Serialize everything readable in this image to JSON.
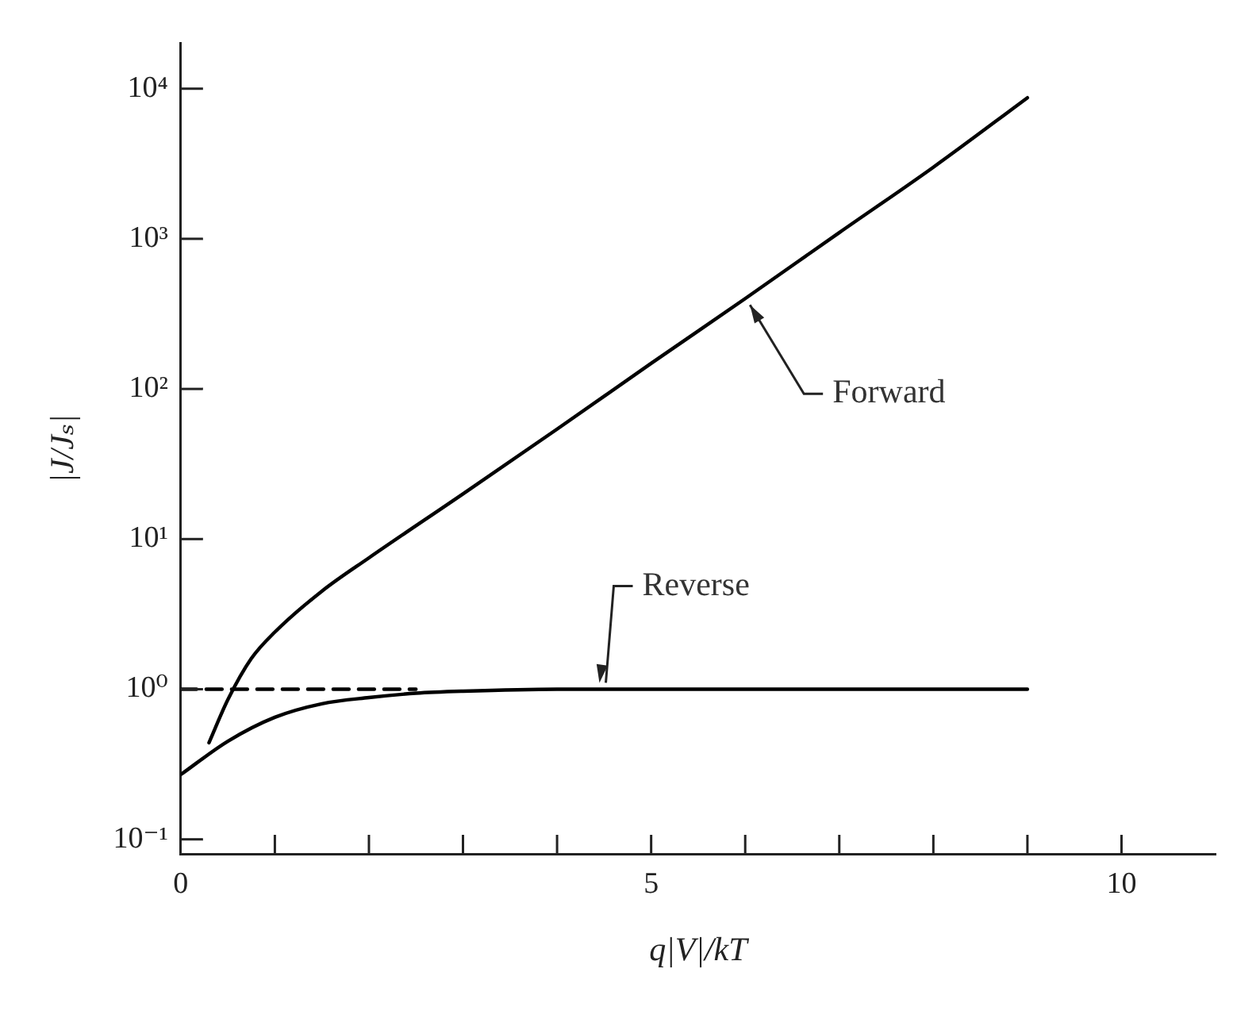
{
  "chart_data": {
    "type": "line",
    "xlabel": "q|V|/kT",
    "ylabel": "|J/Jₛ|",
    "log": "y",
    "grid": false,
    "legend": false,
    "marker": "none",
    "xlim": [
      0,
      11
    ],
    "ylim": [
      0.08,
      20000
    ],
    "xticks": [
      0,
      {
        "value": 1,
        "label": null
      },
      {
        "value": 2,
        "label": null
      },
      {
        "value": 3,
        "label": null
      },
      {
        "value": 4,
        "label": null
      },
      5,
      {
        "value": 6,
        "label": null
      },
      {
        "value": 7,
        "label": null
      },
      {
        "value": 8,
        "label": null
      },
      {
        "value": 9,
        "label": null
      },
      10
    ],
    "yticks": [
      {
        "value": 0.1,
        "label": "10⁻¹"
      },
      {
        "value": 1,
        "label": "10⁰"
      },
      {
        "value": 10,
        "label": "10¹"
      },
      {
        "value": 100,
        "label": "10²"
      },
      {
        "value": 1000,
        "label": "10³"
      },
      {
        "value": 10000,
        "label": "10⁴"
      }
    ],
    "series": [
      {
        "color": "#000000",
        "x": [
          0.3,
          0.5,
          0.75,
          1,
          1.5,
          2,
          3,
          4,
          5,
          6,
          7,
          8,
          9
        ],
        "values": [
          0.44,
          0.85,
          1.6,
          2.4,
          4.5,
          7.5,
          20,
          54,
          148,
          400,
          1100,
          3000,
          8700
        ]
      },
      {
        "color": "#000000",
        "x": [
          0,
          0.5,
          1,
          1.5,
          2,
          2.5,
          3,
          4,
          5,
          6,
          7,
          8,
          9
        ],
        "values": [
          0.27,
          0.45,
          0.65,
          0.8,
          0.88,
          0.94,
          0.97,
          1,
          1,
          1,
          1,
          1,
          1
        ]
      },
      {
        "color": "#000000",
        "line_style": "dashed",
        "x": [
          0,
          2.5
        ],
        "values": [
          1,
          1
        ]
      }
    ],
    "annotations": [
      {
        "text": "Forward",
        "x": 6,
        "y": 400
      },
      {
        "text": "Reverse",
        "x": 4.4,
        "y": 1
      }
    ]
  }
}
